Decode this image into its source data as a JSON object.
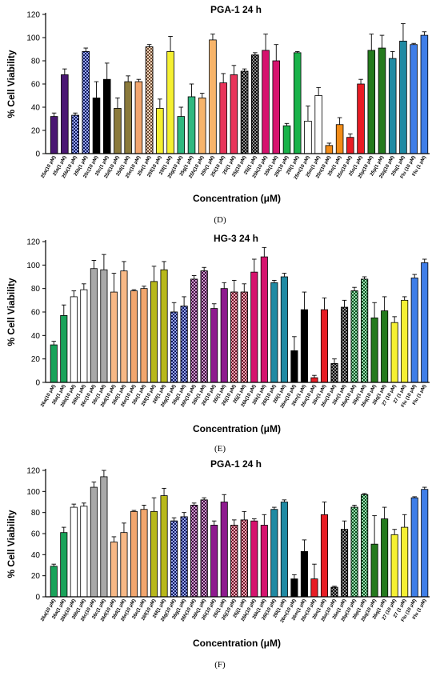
{
  "panel_labels": [
    "(D)",
    "(E)",
    "(F)"
  ],
  "chart_data": [
    {
      "type": "bar",
      "title": "PGA-1 24 h",
      "ylabel": "% Cell Viability",
      "xlabel": "Concentration (μM)",
      "ylim": [
        0,
        120
      ],
      "yticks": [
        0,
        20,
        40,
        60,
        80,
        100,
        120
      ],
      "categories": [
        "25a(10 μM)",
        "25a(1 μM)",
        "25b(10 μM)",
        "25b(1 μM)",
        "25c(10 μM)",
        "25c(1 μM)",
        "25d(10 μM)",
        "25d(1 μM)",
        "25e(10 μM)",
        "25e(1 μM)",
        "25f(10 μM)",
        "25f(1 μM)",
        "25g(10 μM)",
        "25g(1 μM)",
        "25h(10 μM)",
        "25h(1 μM)",
        "25i(10 μM)",
        "25i(1 μM)",
        "25j(10 μM)",
        "25j(1 μM)",
        "25k(10 μM)",
        "25k(1 μM)",
        "25l(10 μM)",
        "25l(1 μM)",
        "25m(10 μM)",
        "25m(1 μM)",
        "25n(10 μM)",
        "25n(1 μM)",
        "25o(10 μM)",
        "25o(1 μM)",
        "25p(10 μM)",
        "25p(1 μM)",
        "25q(10 μM)",
        "25q(1 μM)",
        "Flu (10 μM)",
        "Flu (1 μM)"
      ],
      "values": [
        32,
        68,
        33,
        88,
        48,
        64,
        39,
        62,
        62,
        92,
        39,
        88,
        32,
        49,
        48,
        98,
        61,
        68,
        71,
        85,
        89,
        80,
        24,
        87,
        28,
        50,
        7,
        25,
        14,
        60,
        89,
        91,
        82,
        97,
        94,
        102
      ],
      "errors": [
        3,
        5,
        2,
        3,
        14,
        14,
        9,
        5,
        2,
        2,
        8,
        13,
        8,
        11,
        4,
        5,
        8,
        8,
        2,
        2,
        14,
        14,
        2,
        1,
        13,
        7,
        2,
        6,
        3,
        4,
        14,
        11,
        6,
        15,
        1,
        3
      ],
      "colors": [
        "#4a1773",
        "#4a1773",
        "#1c39d6",
        "#1c39d6",
        "#000000",
        "#000000",
        "#8b7a3c",
        "#8b7a3c",
        "#f2a66e",
        "#f2a66e",
        "#f5f032",
        "#f5f032",
        "#2fb87f",
        "#2fb87f",
        "#f7b46a",
        "#f7b46a",
        "#e8345a",
        "#e8345a",
        "#000000",
        "#000000",
        "#d6136e",
        "#d6136e",
        "#19b34a",
        "#19b34a",
        "#ffffff",
        "#ffffff",
        "#f28c18",
        "#f28c18",
        "#e81c24",
        "#e81c24",
        "#247a1d",
        "#247a1d",
        "#1f8aa3",
        "#1f8aa3",
        "#3f7ee8",
        "#3f7ee8"
      ],
      "patterns": [
        "solid",
        "solid",
        "check",
        "check",
        "solid",
        "solid",
        "solid",
        "solid",
        "solid",
        "check",
        "solid",
        "solid",
        "solid",
        "solid",
        "solid",
        "solid",
        "solid",
        "solid",
        "check",
        "check",
        "solid",
        "solid",
        "solid",
        "solid",
        "solid",
        "solid",
        "solid",
        "solid",
        "solid",
        "solid",
        "solid",
        "solid",
        "solid",
        "solid",
        "solid",
        "solid"
      ]
    },
    {
      "type": "bar",
      "title": "HG-3 24 h",
      "ylabel": "% Cell Viability",
      "xlabel": "Concentration (μM)",
      "ylim": [
        0,
        120
      ],
      "yticks": [
        0,
        20,
        40,
        60,
        80,
        100,
        120
      ],
      "categories": [
        "26a(10 μM)",
        "26a(1 μM)",
        "26b(10 μM)",
        "26b(1 μM)",
        "26c(10 μM)",
        "26c(1 μM)",
        "26d(10 μM)",
        "26d(1 μM)",
        "26e(10 μM)",
        "26e(1 μM)",
        "26f(10 μM)",
        "26f(1 μM)",
        "26g(10 μM)",
        "26g(1 μM)",
        "26h(10 μM)",
        "26h(1 μM)",
        "26i(10 μM)",
        "26i(1 μM)",
        "26j(10 μM)",
        "26j(1 μM)",
        "26k(10 μM)",
        "26k(1 μM)",
        "26l(10 μM)",
        "26l(1 μM)",
        "26m(10 μM)",
        "26m(1 μM)",
        "26n(10 μM)",
        "26n(1 μM)",
        "26o(10 μM)",
        "26o(1 μM)",
        "26p(10 μM)",
        "26p(1 μM)",
        "26q(10 μM)",
        "26q(1 μM)",
        "27 (10 μM)",
        "27 (1 μM)",
        "Flu (10 μM)",
        "Flu (1 μM)"
      ],
      "values": [
        32,
        57,
        73,
        79,
        97,
        96,
        77,
        95,
        78,
        80,
        86,
        96,
        60,
        65,
        88,
        95,
        63,
        80,
        77,
        77,
        94,
        107,
        85,
        90,
        27,
        62,
        4,
        62,
        16,
        64,
        78,
        88,
        55,
        61,
        51,
        70,
        89,
        102
      ],
      "errors": [
        3,
        9,
        5,
        5,
        7,
        13,
        16,
        8,
        1,
        2,
        13,
        7,
        8,
        8,
        3,
        3,
        4,
        5,
        10,
        7,
        11,
        8,
        2,
        3,
        12,
        15,
        2,
        10,
        4,
        6,
        3,
        2,
        13,
        12,
        5,
        3,
        3,
        3
      ],
      "colors": [
        "#19a35a",
        "#19a35a",
        "#ffffff",
        "#ffffff",
        "#a8a8a8",
        "#a8a8a8",
        "#f7b886",
        "#f7b886",
        "#f2a66e",
        "#f2a66e",
        "#b8b81a",
        "#b8b81a",
        "#1c39d6",
        "#1c39d6",
        "#8f1a8f",
        "#8f1a8f",
        "#8f1a8f",
        "#8f1a8f",
        "#e8345a",
        "#e8345a",
        "#d6136e",
        "#d6136e",
        "#1f8aa3",
        "#1f8aa3",
        "#000000",
        "#000000",
        "#e81c24",
        "#e81c24",
        "#000000",
        "#000000",
        "#19b34a",
        "#19b34a",
        "#247a1d",
        "#247a1d",
        "#f5f032",
        "#f5f032",
        "#3f7ee8",
        "#3f7ee8"
      ],
      "patterns": [
        "solid",
        "solid",
        "solid",
        "solid",
        "solid",
        "solid",
        "solid",
        "solid",
        "solid",
        "solid",
        "solid",
        "solid",
        "check",
        "check",
        "check",
        "check",
        "solid",
        "solid",
        "check",
        "check",
        "solid",
        "solid",
        "solid",
        "solid",
        "solid",
        "solid",
        "solid",
        "solid",
        "check",
        "check",
        "check",
        "check",
        "solid",
        "solid",
        "solid",
        "solid",
        "solid",
        "solid"
      ]
    },
    {
      "type": "bar",
      "title": "PGA-1 24 h",
      "ylabel": "% Cell Viability",
      "xlabel": "Concentration (μM)",
      "ylim": [
        0,
        120
      ],
      "yticks": [
        0,
        20,
        40,
        60,
        80,
        100,
        120
      ],
      "categories": [
        "26a(10 μM)",
        "26a(1 μM)",
        "26b(10 μM)",
        "26b(1 μM)",
        "26c(10 μM)",
        "26c(1 μM)",
        "26d(10 μM)",
        "26d(1 μM)",
        "26e(10 μM)",
        "26e(1 μM)",
        "26f(10 μM)",
        "26f(1 μM)",
        "26g(10 μM)",
        "26g(1 μM)",
        "26h(10 μM)",
        "26h(1 μM)",
        "26i(10 μM)",
        "26i(1 μM)",
        "26j(10 μM)",
        "26j(1 μM)",
        "26k(10 μM)",
        "26k(1 μM)",
        "26l(10 μM)",
        "26l(1 μM)",
        "26m(10 μM)",
        "26m(1 μM)",
        "26n(10 μM)",
        "26n(1 μM)",
        "26o(10 μM)",
        "26o(1 μM)",
        "26p(10 μM)",
        "26p(1 μM)",
        "26q(10 μM)",
        "26q(1 μM)",
        "27 (10 μM)",
        "27 (1 μM)",
        "Flu (10 μM)",
        "Flu (1 μM)"
      ],
      "values": [
        29,
        61,
        85,
        86,
        104,
        114,
        52,
        61,
        81,
        83,
        81,
        96,
        72,
        76,
        87,
        92,
        68,
        90,
        68,
        73,
        72,
        68,
        83,
        90,
        17,
        43,
        17,
        78,
        9,
        64,
        85,
        97,
        50,
        74,
        59,
        66,
        94,
        102
      ],
      "errors": [
        2,
        5,
        3,
        3,
        5,
        6,
        5,
        9,
        1,
        4,
        13,
        7,
        3,
        4,
        2,
        2,
        4,
        7,
        5,
        8,
        2,
        10,
        2,
        2,
        4,
        11,
        14,
        12,
        1,
        8,
        2,
        1,
        27,
        11,
        5,
        12,
        1,
        2
      ],
      "colors": [
        "#19a35a",
        "#19a35a",
        "#ffffff",
        "#ffffff",
        "#a8a8a8",
        "#a8a8a8",
        "#f7b886",
        "#f7b886",
        "#f2a66e",
        "#f2a66e",
        "#b8b81a",
        "#b8b81a",
        "#1c39d6",
        "#1c39d6",
        "#8f1a8f",
        "#8f1a8f",
        "#8f1a8f",
        "#8f1a8f",
        "#e8345a",
        "#e8345a",
        "#d6136e",
        "#d6136e",
        "#1f8aa3",
        "#1f8aa3",
        "#000000",
        "#000000",
        "#e81c24",
        "#e81c24",
        "#000000",
        "#000000",
        "#19b34a",
        "#19b34a",
        "#247a1d",
        "#247a1d",
        "#f5f032",
        "#f5f032",
        "#3f7ee8",
        "#3f7ee8"
      ],
      "patterns": [
        "solid",
        "solid",
        "solid",
        "solid",
        "solid",
        "solid",
        "solid",
        "solid",
        "solid",
        "solid",
        "solid",
        "solid",
        "check",
        "check",
        "check",
        "check",
        "solid",
        "solid",
        "check",
        "check",
        "solid",
        "solid",
        "solid",
        "solid",
        "solid",
        "solid",
        "solid",
        "solid",
        "check",
        "check",
        "check",
        "check",
        "solid",
        "solid",
        "solid",
        "solid",
        "solid",
        "solid"
      ]
    }
  ]
}
